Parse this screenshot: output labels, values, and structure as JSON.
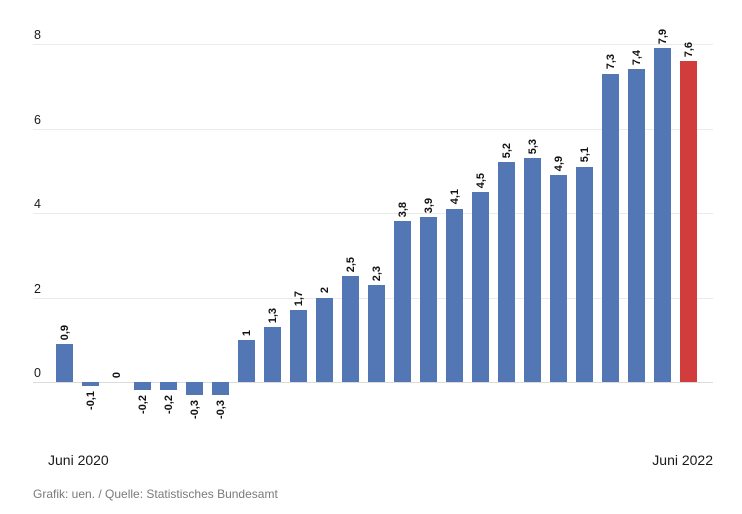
{
  "chart_data": {
    "type": "bar",
    "title": "",
    "values": [
      0.9,
      -0.1,
      0,
      -0.2,
      -0.2,
      -0.3,
      -0.3,
      1,
      1.3,
      1.7,
      2,
      2.5,
      2.3,
      3.8,
      3.9,
      4.1,
      4.5,
      5.2,
      5.3,
      4.9,
      5.1,
      7.3,
      7.4,
      7.9,
      7.6
    ],
    "bar_labels": [
      "0,9",
      "-0,1",
      "0",
      "-0,2",
      "-0,2",
      "-0,3",
      "-0,3",
      "1",
      "1,3",
      "1,7",
      "2",
      "2,5",
      "2,3",
      "3,8",
      "3,9",
      "4,1",
      "4,5",
      "5,2",
      "5,3",
      "4,9",
      "5,1",
      "7,3",
      "7,4",
      "7,9",
      "7,6"
    ],
    "highlight_index": 24,
    "bar_color": "#5277b4",
    "highlight_color": "#d13c3c",
    "y_ticks": [
      0,
      2,
      4,
      6,
      8
    ],
    "y_tick_labels": [
      "0",
      "2",
      "4",
      "6",
      "8"
    ],
    "ylim": [
      -0.5,
      8.2
    ],
    "grid": true,
    "legend": false,
    "x_start_label": "Juni 2020",
    "x_end_label": "Juni 2022"
  },
  "footer": {
    "credit": "Grafik: uen. / Quelle: Statistisches Bundesamt"
  }
}
